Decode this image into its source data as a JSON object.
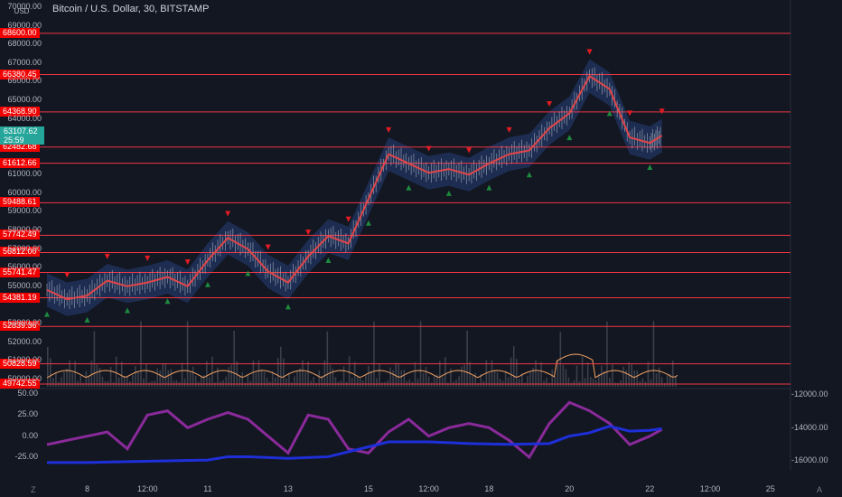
{
  "header": {
    "title": "Bitcoin / U.S. Dollar, 30, BITSTAMP",
    "currency": "USD"
  },
  "price_now": {
    "value": "63107.62",
    "countdown": "25:59"
  },
  "colors": {
    "background": "#131722",
    "level_line": "#f23645",
    "level_label": "#f20000",
    "price_line": "#e0454a",
    "band": "#2a4a8f",
    "oscillator": "#8a2a9a",
    "cumulative": "#1e2fd8",
    "volume_osc": "#f4a261",
    "up_marker": "#1e8a3e",
    "down_marker": "#e31b23"
  },
  "chart_data": {
    "type": "line",
    "title": "Bitcoin / U.S. Dollar, 30, BITSTAMP",
    "xlabel": "",
    "ylabel": "",
    "ylim": [
      49500,
      70000
    ],
    "y_ticks": [
      "70000.00",
      "69000.00",
      "68000.00",
      "67000.00",
      "66000.00",
      "65000.00",
      "64000.00",
      "61000.00",
      "60000.00",
      "59000.00",
      "58000.00",
      "57000.00",
      "56000.00",
      "55000.00",
      "53000.00",
      "52000.00",
      "51000.00",
      "50000.00"
    ],
    "x_ticks": [
      {
        "label": "8",
        "day": 8.0
      },
      {
        "label": "12:00",
        "day": 9.5
      },
      {
        "label": "11",
        "day": 11.0
      },
      {
        "label": "13",
        "day": 13.0
      },
      {
        "label": "15",
        "day": 15.0
      },
      {
        "label": "12:00",
        "day": 16.5
      },
      {
        "label": "18",
        "day": 18.0
      },
      {
        "label": "20",
        "day": 20.0
      },
      {
        "label": "22",
        "day": 22.0
      },
      {
        "label": "12:00",
        "day": 23.5
      },
      {
        "label": "25",
        "day": 25.0
      }
    ],
    "levels": [
      "68600.00",
      "66380.45",
      "64368.90",
      "62482.68",
      "61612.66",
      "59488.61",
      "57742.49",
      "56812.00",
      "55741.47",
      "54381.19",
      "52839.36",
      "50828.59",
      "49742.55"
    ],
    "series": [
      {
        "kind": "price",
        "x": [
          7.0,
          7.5,
          8.0,
          8.5,
          9.0,
          9.5,
          10.0,
          10.5,
          11.0,
          11.5,
          12.0,
          12.5,
          13.0,
          13.5,
          14.0,
          14.5,
          15.0,
          15.5,
          16.0,
          16.5,
          17.0,
          17.5,
          18.0,
          18.5,
          19.0,
          19.5,
          20.0,
          20.5,
          21.0,
          21.5,
          22.0,
          22.3
        ],
        "y": [
          54800,
          54300,
          54500,
          55300,
          55000,
          55200,
          55500,
          55000,
          56400,
          57600,
          57000,
          55800,
          55200,
          56600,
          57700,
          57300,
          59700,
          62100,
          61600,
          61100,
          61300,
          61000,
          61600,
          62100,
          62300,
          63500,
          64300,
          66300,
          65600,
          63000,
          62700,
          63100
        ]
      },
      {
        "kind": "oscillator",
        "x": [
          7.0,
          7.5,
          8.0,
          8.5,
          9.0,
          9.5,
          10.0,
          10.5,
          11.0,
          11.5,
          12.0,
          12.5,
          13.0,
          13.5,
          14.0,
          14.5,
          15.0,
          15.5,
          16.0,
          16.5,
          17.0,
          17.5,
          18.0,
          18.5,
          19.0,
          19.5,
          20.0,
          20.5,
          21.0,
          21.5,
          22.0,
          22.3
        ],
        "y": [
          -10,
          -5,
          0,
          5,
          -15,
          25,
          30,
          10,
          20,
          28,
          20,
          0,
          -20,
          25,
          20,
          -15,
          -20,
          5,
          20,
          0,
          10,
          15,
          10,
          -5,
          -25,
          15,
          40,
          30,
          15,
          -10,
          0,
          8
        ]
      },
      {
        "kind": "cumulative",
        "x": [
          7.0,
          8.0,
          9.0,
          10.0,
          11.0,
          11.5,
          12.0,
          13.0,
          14.0,
          15.0,
          15.5,
          16.5,
          17.5,
          18.5,
          19.5,
          20.0,
          20.5,
          21.0,
          21.5,
          22.0,
          22.3
        ],
        "y": [
          -16100,
          -16100,
          -16050,
          -16000,
          -15950,
          -15750,
          -15750,
          -15850,
          -15750,
          -15150,
          -14850,
          -14850,
          -14950,
          -15000,
          -14950,
          -14500,
          -14300,
          -13900,
          -14200,
          -14150,
          -14050
        ]
      }
    ],
    "sub_y_ticks": [
      "50.00",
      "25.00",
      "0.00",
      "-25.00"
    ],
    "sub_y2_ticks": [
      "-12000.00",
      "-14000.00",
      "-16000.00"
    ],
    "grid": false,
    "legend": "none"
  }
}
